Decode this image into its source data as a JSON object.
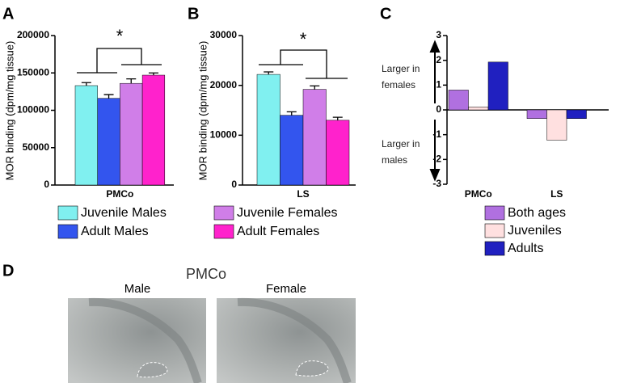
{
  "chart_data": [
    {
      "type": "bar",
      "panel": "A",
      "ylabel": "MOR binding (dpm/mg tissue)",
      "categories": [
        "PMCo"
      ],
      "ylim": [
        0,
        200000
      ],
      "yticks": [
        0,
        50000,
        100000,
        150000,
        200000
      ],
      "significance": "*",
      "series": [
        {
          "name": "Juvenile Males",
          "color": "#80f0f0",
          "values": [
            133000
          ],
          "errors": [
            4000
          ]
        },
        {
          "name": "Adult Males",
          "color": "#3355ee",
          "values": [
            116000
          ],
          "errors": [
            5000
          ]
        },
        {
          "name": "Juvenile Females",
          "color": "#d07ee8",
          "values": [
            136000
          ],
          "errors": [
            6000
          ]
        },
        {
          "name": "Adult Females",
          "color": "#ff22cc",
          "values": [
            147000
          ],
          "errors": [
            3000
          ]
        }
      ]
    },
    {
      "type": "bar",
      "panel": "B",
      "ylabel": "MOR binding (dpm/mg tissue)",
      "categories": [
        "LS"
      ],
      "ylim": [
        0,
        30000
      ],
      "yticks": [
        0,
        10000,
        20000,
        30000
      ],
      "significance": "*",
      "series": [
        {
          "color": "#80f0f0",
          "values": [
            22200
          ],
          "errors": [
            500
          ]
        },
        {
          "color": "#3355ee",
          "values": [
            14000
          ],
          "errors": [
            700
          ]
        },
        {
          "color": "#d07ee8",
          "values": [
            19200
          ],
          "errors": [
            700
          ]
        },
        {
          "color": "#ff22cc",
          "values": [
            13000
          ],
          "errors": [
            600
          ]
        }
      ]
    },
    {
      "type": "bar",
      "panel": "C",
      "categories": [
        "PMCo",
        "LS"
      ],
      "ylim": [
        -3,
        3
      ],
      "yticks": [
        -3,
        -2,
        -1,
        0,
        1,
        2,
        3
      ],
      "annotations": [
        "Larger in females",
        "Larger in males"
      ],
      "series": [
        {
          "name": "Both ages",
          "color": "#b070e0",
          "values": [
            0.8,
            -0.35
          ]
        },
        {
          "name": "Juveniles",
          "color": "#ffe0e0",
          "values": [
            0.12,
            -1.22
          ]
        },
        {
          "name": "Adults",
          "color": "#2020c0",
          "values": [
            1.93,
            -0.35
          ]
        }
      ]
    }
  ],
  "figure": {
    "panel": "D",
    "title": "PMCo",
    "images": [
      "Male",
      "Female"
    ]
  }
}
